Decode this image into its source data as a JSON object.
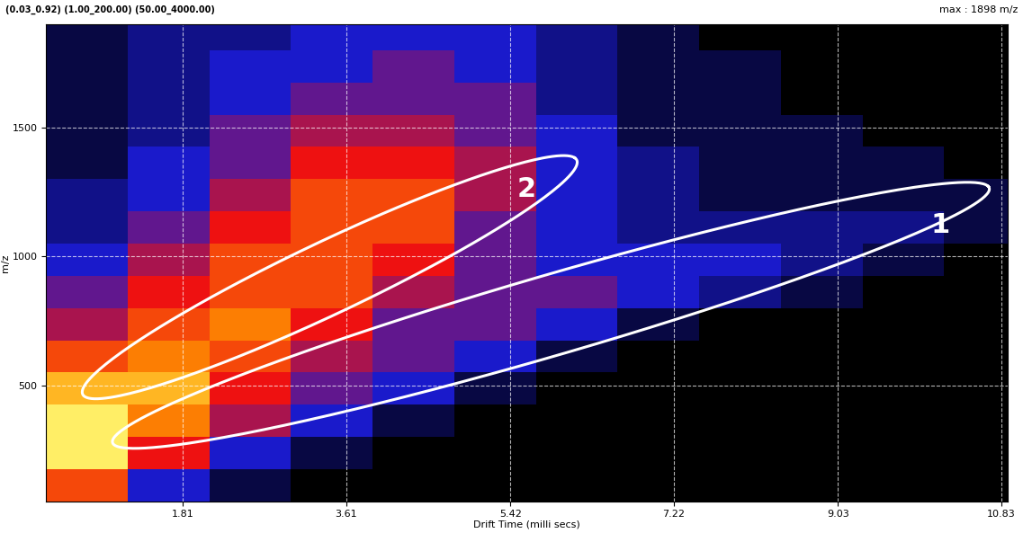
{
  "chart_data": {
    "type": "heatmap",
    "title": "(0.03_0.92) (1.00_200.00) (50.00_4000.00)",
    "subtitle": "max : 1898 m/z",
    "x_label": "Drift Time (milli secs)",
    "y_label": "m/z",
    "x_edges": [
      0.3,
      1.2,
      2.1,
      3.0,
      3.9,
      4.8,
      5.7,
      6.6,
      7.5,
      8.4,
      9.3,
      10.2,
      10.9
    ],
    "y_edges": [
      50,
      175,
      300,
      425,
      550,
      675,
      800,
      925,
      1050,
      1175,
      1300,
      1425,
      1550,
      1675,
      1800,
      1900
    ],
    "cells": [
      [
        7,
        3,
        1,
        0,
        0,
        0,
        0,
        0,
        0,
        0,
        0,
        0
      ],
      [
        10,
        6,
        3,
        1,
        0,
        0,
        0,
        0,
        0,
        0,
        0,
        0
      ],
      [
        10,
        8,
        5,
        3,
        1,
        0,
        0,
        0,
        0,
        0,
        0,
        0
      ],
      [
        9,
        9,
        6,
        4,
        3,
        1,
        0,
        0,
        0,
        0,
        0,
        0
      ],
      [
        7,
        8,
        7,
        5,
        4,
        3,
        1,
        0,
        0,
        0,
        0,
        0
      ],
      [
        5,
        7,
        8,
        6,
        4,
        4,
        3,
        1,
        0,
        0,
        0,
        0
      ],
      [
        4,
        6,
        7,
        7,
        5,
        4,
        4,
        3,
        2,
        1,
        0,
        0
      ],
      [
        3,
        5,
        7,
        7,
        6,
        4,
        3,
        3,
        3,
        2,
        1,
        0
      ],
      [
        2,
        4,
        6,
        7,
        7,
        4,
        3,
        2,
        2,
        2,
        2,
        1
      ],
      [
        2,
        3,
        5,
        7,
        7,
        5,
        3,
        2,
        1,
        1,
        1,
        1
      ],
      [
        1,
        3,
        4,
        6,
        6,
        5,
        3,
        2,
        1,
        1,
        1,
        0
      ],
      [
        1,
        2,
        4,
        5,
        5,
        4,
        3,
        1,
        1,
        1,
        0,
        0
      ],
      [
        1,
        2,
        3,
        4,
        4,
        4,
        2,
        1,
        1,
        0,
        0,
        0
      ],
      [
        1,
        2,
        3,
        3,
        4,
        3,
        2,
        1,
        1,
        0,
        0,
        0
      ],
      [
        1,
        2,
        2,
        3,
        3,
        3,
        2,
        1,
        0,
        0,
        0,
        0
      ]
    ],
    "xlim": [
      0.3,
      10.9
    ],
    "ylim": [
      50,
      1900
    ],
    "xticks": [
      1.81,
      3.61,
      5.42,
      7.22,
      9.03,
      10.83
    ],
    "yticks": [
      500,
      1000,
      1500
    ],
    "grid": true,
    "annotations": [
      "1",
      "2"
    ]
  }
}
